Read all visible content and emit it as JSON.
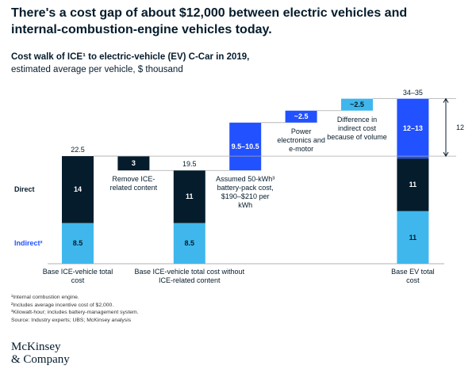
{
  "headline": "There's a cost gap of about $12,000 between electric vehicles and internal-combustion-engine vehicles today.",
  "chart_data": {
    "type": "waterfall",
    "title": "Cost walk of ICE¹ to electric-vehicle (EV) C-Car in 2019,",
    "subtitle": "estimated average per vehicle, $ thousand",
    "segment_names": [
      "Indirect²",
      "Direct"
    ],
    "bars": [
      {
        "kind": "total",
        "label": "Base ICE-vehicle total cost",
        "total": 22.5,
        "segments": [
          {
            "value": 8.5,
            "color": "#3fb7ec"
          },
          {
            "value": 14,
            "color": "#051c2c"
          }
        ]
      },
      {
        "kind": "down",
        "label": "Remove ICE-related content",
        "segments": [
          {
            "value": 3,
            "color": "#051c2c"
          }
        ]
      },
      {
        "kind": "total",
        "label": "Base ICE-vehicle total cost without ICE-related content",
        "total": 19.5,
        "segments": [
          {
            "value": 8.5,
            "color": "#3fb7ec"
          },
          {
            "value": 11,
            "color": "#051c2c"
          }
        ]
      },
      {
        "kind": "up",
        "label": "Assumed 50-kWh³ battery-pack cost, $190–$210 per kWh",
        "segments": [
          {
            "value": 10,
            "value_label": "9.5–10.5",
            "color": "#2251ff"
          }
        ]
      },
      {
        "kind": "up",
        "label": "Power electronics and e-motor",
        "segments": [
          {
            "value": 2.5,
            "value_label": "~2.5",
            "color": "#2251ff"
          }
        ]
      },
      {
        "kind": "up",
        "label": "Difference in indirect cost because of volume",
        "segments": [
          {
            "value": 2.5,
            "value_label": "~2.5",
            "color": "#3fb7ec"
          }
        ]
      },
      {
        "kind": "total",
        "label": "Base EV total cost",
        "total": "34–35",
        "segments": [
          {
            "value": 11,
            "color": "#3fb7ec"
          },
          {
            "value": 11,
            "color": "#051c2c"
          },
          {
            "value": 12.5,
            "value_label": "12–13",
            "color": "#2251ff"
          }
        ]
      }
    ],
    "gap": 12
  },
  "footnotes": [
    "¹Internal combustion engine.",
    "²Includes average incentive cost of $2,000.",
    "³Kilowatt-hour; includes battery-management system.",
    "Source: Industry experts; UBS; McKinsey analysis"
  ],
  "logo": [
    "McKinsey",
    "& Company"
  ]
}
